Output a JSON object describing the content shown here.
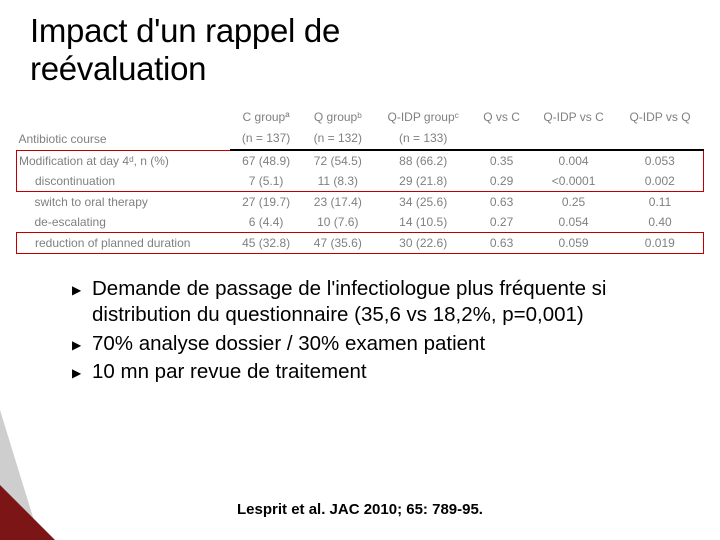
{
  "title_line1": "Impact d'un rappel de",
  "title_line2": "reévaluation",
  "table": {
    "header_rowlabel": "Antibiotic course",
    "cols": [
      {
        "h1": "C groupª",
        "h2": "(n = 137)"
      },
      {
        "h1": "Q groupᵇ",
        "h2": "(n = 132)"
      },
      {
        "h1": "Q-IDP groupᶜ",
        "h2": "(n = 133)"
      },
      {
        "h1": "Q vs C",
        "h2": ""
      },
      {
        "h1": "Q-IDP vs C",
        "h2": ""
      },
      {
        "h1": "Q-IDP vs Q",
        "h2": ""
      }
    ],
    "rows": [
      {
        "label": "Modification at day 4ᵈ, n (%)",
        "indent": false,
        "cells": [
          "67 (48.9)",
          "72 (54.5)",
          "88 (66.2)",
          "0.35",
          "0.004",
          "0.053"
        ]
      },
      {
        "label": "discontinuation",
        "indent": true,
        "cells": [
          "7 (5.1)",
          "11 (8.3)",
          "29 (21.8)",
          "0.29",
          "<0.0001",
          "0.002"
        ]
      },
      {
        "label": "switch to oral therapy",
        "indent": true,
        "cells": [
          "27 (19.7)",
          "23 (17.4)",
          "34 (25.6)",
          "0.63",
          "0.25",
          "0.11"
        ]
      },
      {
        "label": "de-escalating",
        "indent": true,
        "cells": [
          "6 (4.4)",
          "10 (7.6)",
          "14 (10.5)",
          "0.27",
          "0.054",
          "0.40"
        ]
      },
      {
        "label": "reduction of planned duration",
        "indent": true,
        "cells": [
          "45 (32.8)",
          "47 (35.6)",
          "30 (22.6)",
          "0.63",
          "0.059",
          "0.019"
        ]
      }
    ]
  },
  "bullets": [
    "Demande de passage de l'infectiologue plus fréquente si distribution du questionnaire (35,6 vs 18,2%, p=0,001)",
    "70% analyse dossier / 30% examen patient",
    "10 mn par revue de traitement"
  ],
  "citation": "Lesprit et al. JAC 2010; 65: 789-95.",
  "style": {
    "title_fontsize": 33,
    "body_fontsize": 20.5,
    "table_fontsize": 12,
    "text_color": "#000000",
    "table_text_color": "#808080",
    "red_box_color": "#c00000",
    "accent_color": "#7c1515",
    "background": "#ffffff"
  }
}
